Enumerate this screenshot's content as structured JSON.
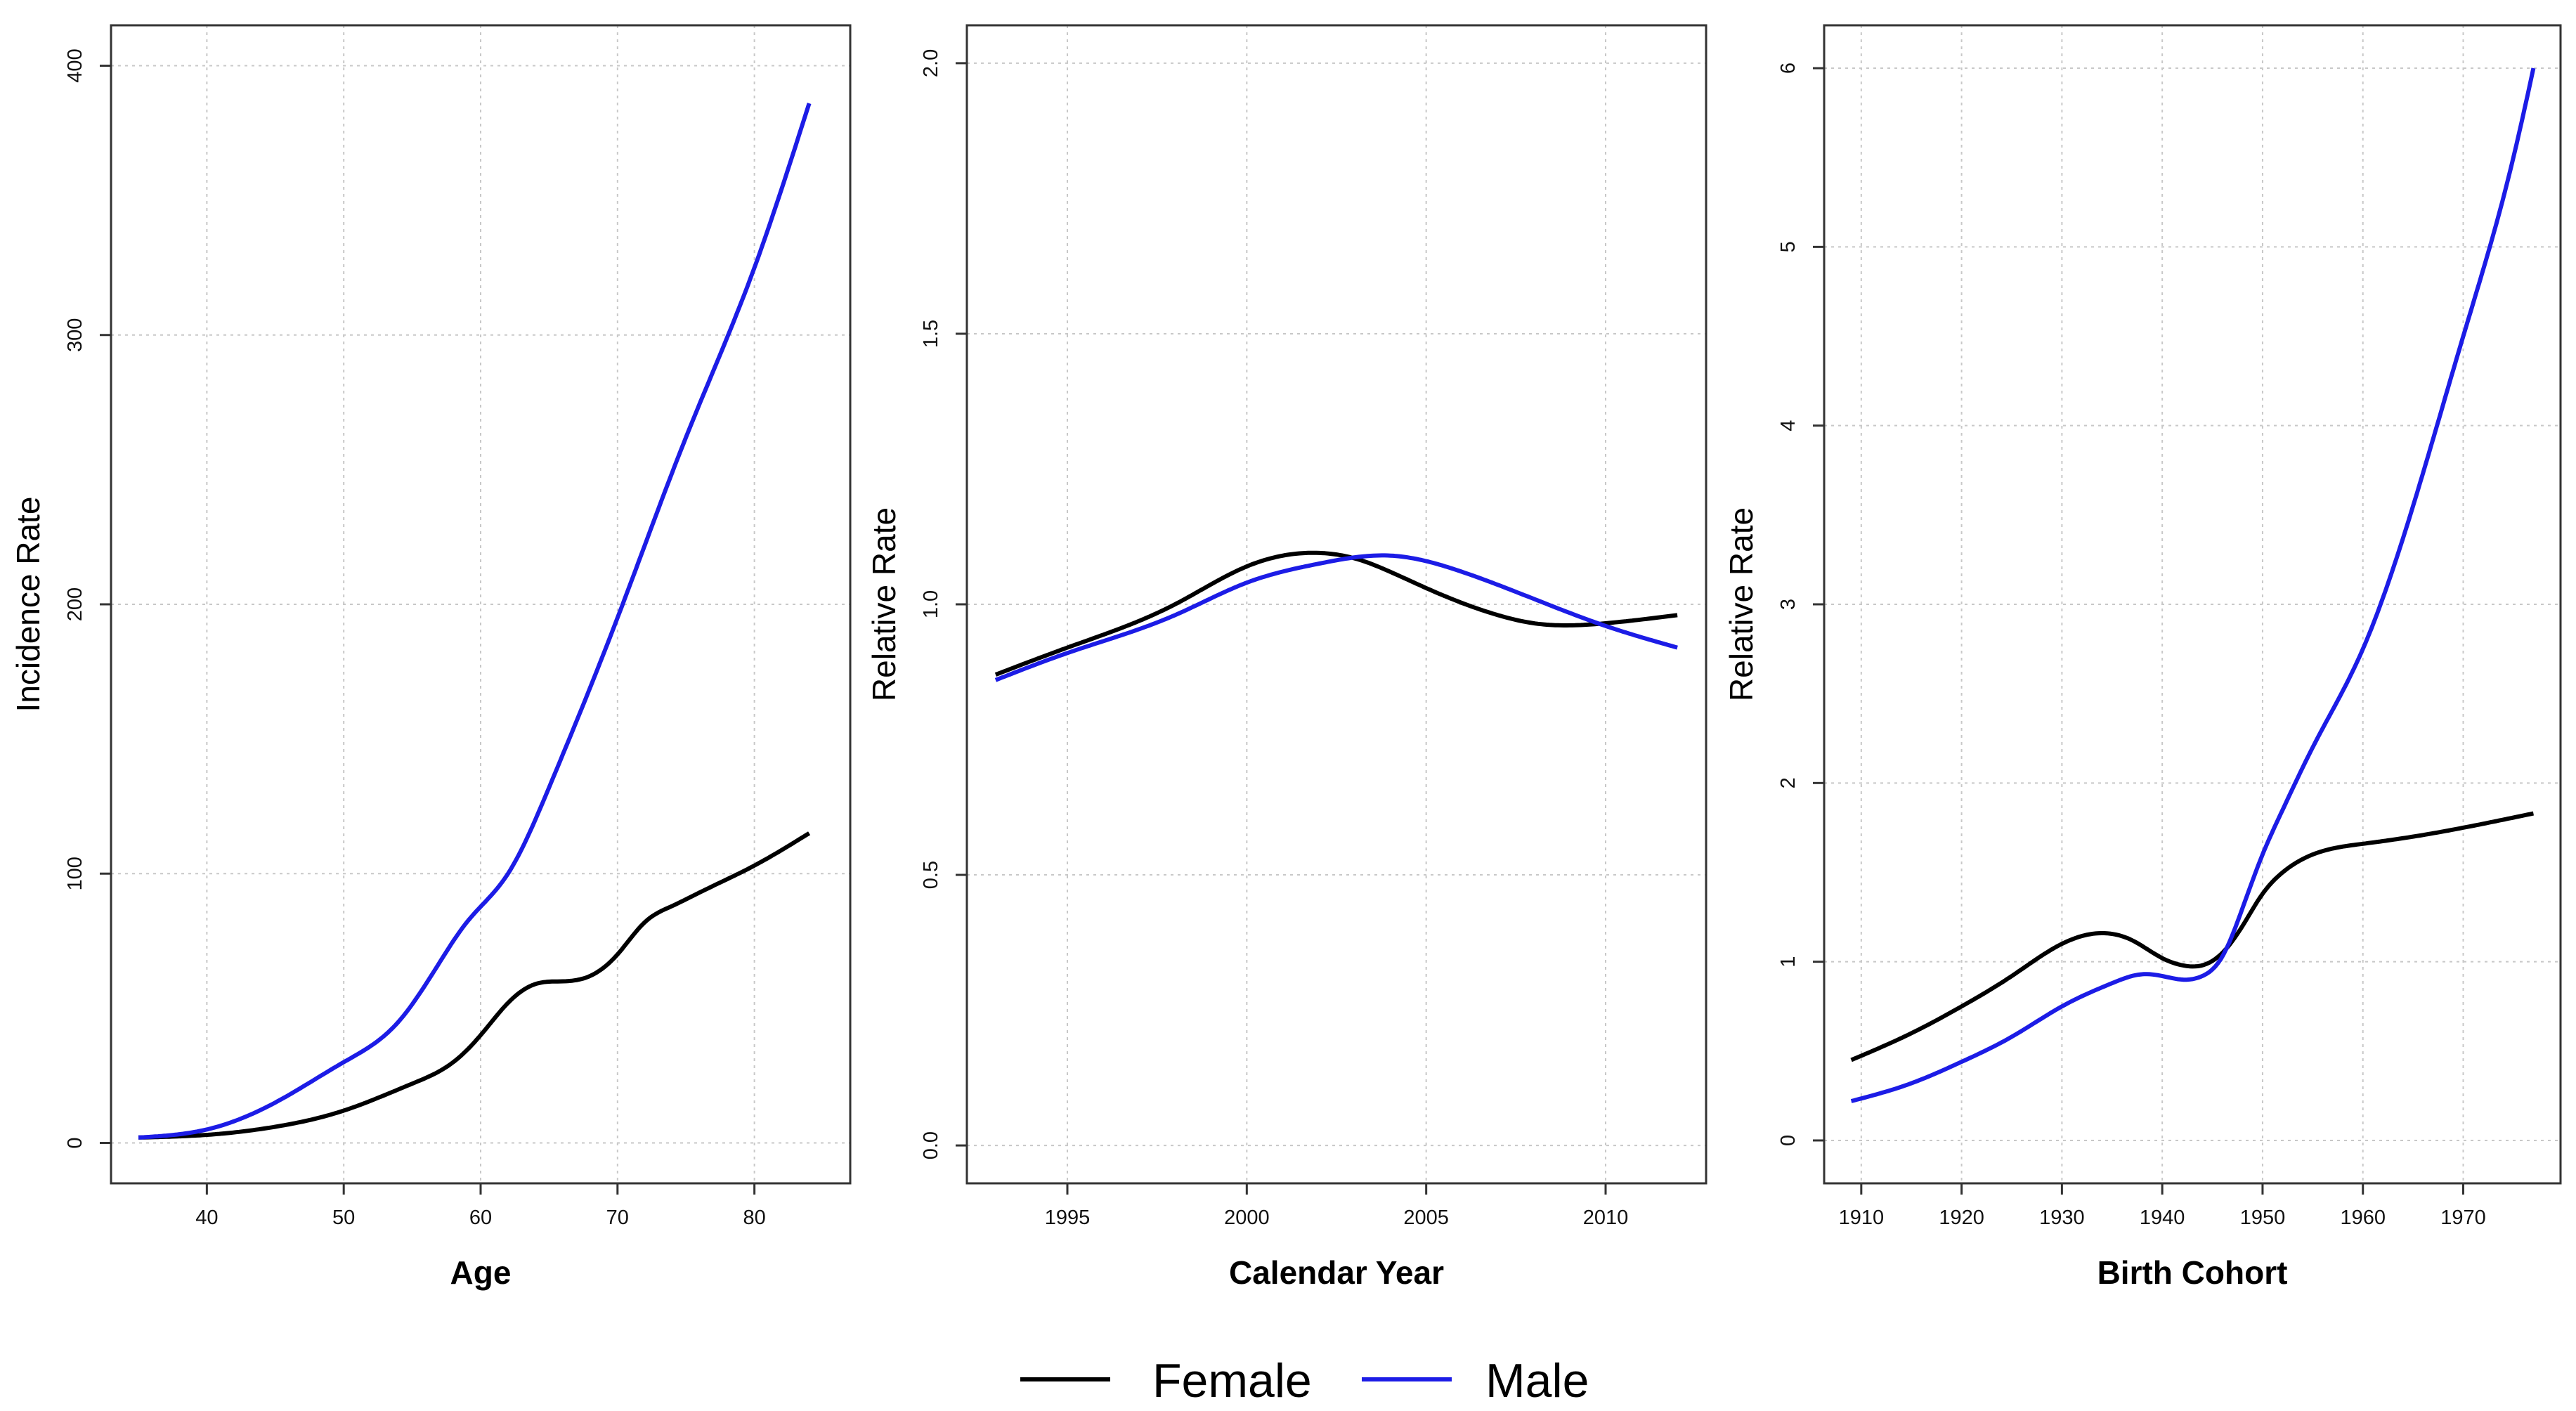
{
  "chart_data": [
    {
      "type": "line",
      "title": "",
      "xlabel": "Age",
      "ylabel": "Incidence Rate",
      "xlim": [
        33,
        87
      ],
      "ylim": [
        -15,
        415
      ],
      "xticks": [
        40,
        50,
        60,
        70,
        80
      ],
      "yticks": [
        0,
        100,
        200,
        300,
        400
      ],
      "grid": true,
      "series": [
        {
          "name": "Female",
          "color": "#000000",
          "x": [
            35,
            40,
            45,
            50,
            55,
            58,
            60,
            62,
            64,
            66,
            68,
            70,
            72,
            74,
            76,
            80,
            84
          ],
          "y": [
            2,
            3,
            6,
            12,
            22,
            30,
            40,
            52,
            59,
            60,
            62,
            70,
            82,
            88,
            93,
            103,
            115
          ]
        },
        {
          "name": "Male",
          "color": "#1c1ce6",
          "x": [
            35,
            40,
            45,
            50,
            54,
            57,
            59,
            62,
            65,
            70,
            75,
            80,
            84
          ],
          "y": [
            2,
            5,
            15,
            30,
            45,
            67,
            82,
            100,
            132,
            195,
            262,
            325,
            386
          ]
        }
      ]
    },
    {
      "type": "line",
      "title": "",
      "xlabel": "Calendar Year",
      "ylabel": "Relative Rate",
      "xlim": [
        1992.2,
        2012.8
      ],
      "ylim": [
        -0.07,
        2.07
      ],
      "xticks": [
        1995,
        2000,
        2005,
        2010
      ],
      "xtick_labels": [
        "1995",
        "2000",
        "2005",
        "2010"
      ],
      "yticks": [
        0.0,
        0.5,
        1.0,
        1.5,
        2.0
      ],
      "ytick_labels": [
        "0.0",
        "0.5",
        "1.0",
        "1.5",
        "2.0"
      ],
      "grid": true,
      "series": [
        {
          "name": "Female",
          "color": "#000000",
          "x": [
            1993,
            1995,
            1998,
            2000,
            2002,
            2003,
            2004,
            2005,
            2007,
            2008,
            2010,
            2012
          ],
          "y": [
            0.87,
            0.92,
            1.0,
            1.07,
            1.095,
            1.085,
            1.06,
            1.03,
            0.98,
            0.965,
            0.965,
            0.98
          ]
        },
        {
          "name": "Male",
          "color": "#1c1ce6",
          "x": [
            1993,
            1995,
            1998,
            2000,
            2002,
            2004,
            2006,
            2008,
            2010,
            2012
          ],
          "y": [
            0.86,
            0.91,
            0.98,
            1.04,
            1.075,
            1.09,
            1.06,
            1.01,
            0.96,
            0.92
          ]
        }
      ]
    },
    {
      "type": "line",
      "title": "",
      "xlabel": "Birth Cohort",
      "ylabel": "Relative Rate",
      "xlim": [
        1906.3,
        1979.7
      ],
      "ylim": [
        -0.24,
        6.24
      ],
      "xticks": [
        1910,
        1920,
        1930,
        1940,
        1950,
        1960,
        1970
      ],
      "yticks": [
        0,
        1,
        2,
        3,
        4,
        5,
        6
      ],
      "grid": true,
      "series": [
        {
          "name": "Female",
          "color": "#000000",
          "x": [
            1909,
            1915,
            1920,
            1925,
            1930,
            1934,
            1937,
            1940,
            1942,
            1944,
            1946,
            1948,
            1950,
            1952,
            1955,
            1960,
            1965,
            1970,
            1977
          ],
          "y": [
            0.45,
            0.6,
            0.75,
            0.92,
            1.1,
            1.16,
            1.12,
            1.02,
            0.98,
            0.98,
            1.05,
            1.2,
            1.38,
            1.5,
            1.6,
            1.66,
            1.7,
            1.75,
            1.83
          ]
        },
        {
          "name": "Male",
          "color": "#1c1ce6",
          "x": [
            1909,
            1915,
            1920,
            1925,
            1930,
            1935,
            1938,
            1940,
            1942,
            1944,
            1946,
            1948,
            1950,
            1952,
            1955,
            1960,
            1965,
            1970,
            1975,
            1977
          ],
          "y": [
            0.22,
            0.32,
            0.44,
            0.58,
            0.75,
            0.88,
            0.93,
            0.92,
            0.9,
            0.92,
            1.03,
            1.3,
            1.6,
            1.85,
            2.2,
            2.75,
            3.55,
            4.5,
            5.5,
            6.0
          ]
        }
      ]
    }
  ],
  "legend": {
    "items": [
      {
        "label": "Female",
        "color": "#000000"
      },
      {
        "label": "Male",
        "color": "#1c1ce6"
      }
    ]
  }
}
